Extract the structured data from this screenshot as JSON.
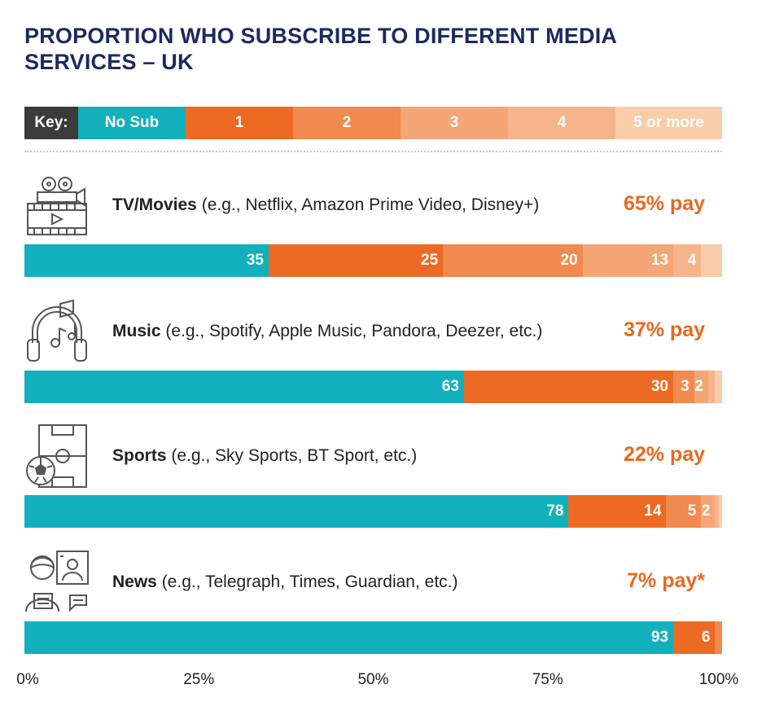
{
  "title": "PROPORTION WHO SUBSCRIBE TO DIFFERENT MEDIA SERVICES – UK",
  "key": {
    "label": "Key:",
    "items": [
      {
        "label": "No Sub",
        "color": "#12b0bd"
      },
      {
        "label": "1",
        "color": "#ec6a23"
      },
      {
        "label": "2",
        "color": "#f08a4e"
      },
      {
        "label": "3",
        "color": "#f4a677"
      },
      {
        "label": "4",
        "color": "#f6b48c"
      },
      {
        "label": "5 or more",
        "color": "#f9cda9"
      }
    ]
  },
  "chart_data": {
    "type": "bar",
    "orientation": "horizontal-stacked",
    "xlim": [
      0,
      100
    ],
    "x_ticks": [
      "0%",
      "25%",
      "50%",
      "75%",
      "100%"
    ],
    "series_names": [
      "No Sub",
      "1",
      "2",
      "3",
      "4",
      "5 or more"
    ],
    "categories": [
      {
        "name": "TV/Movies",
        "desc": " (e.g., Netflix, Amazon Prime Video, Disney+)",
        "pay": "65% pay",
        "icon": "film-camera-icon",
        "values": [
          35,
          25,
          20,
          13,
          4,
          3
        ],
        "labels": [
          "35",
          "25",
          "20",
          "13",
          "4",
          ""
        ]
      },
      {
        "name": "Music",
        "desc": " (e.g., Spotify, Apple Music, Pandora, Deezer, etc.)",
        "pay": "37% pay",
        "icon": "headphones-music-icon",
        "values": [
          63,
          30,
          3,
          2,
          1,
          1
        ],
        "labels": [
          "63",
          "30",
          "3",
          "2",
          "",
          ""
        ]
      },
      {
        "name": "Sports",
        "desc": " (e.g., Sky Sports, BT Sport, etc.)",
        "pay": "22% pay",
        "icon": "football-pitch-icon",
        "values": [
          78,
          14,
          5,
          2,
          0.5,
          0.5
        ],
        "labels": [
          "78",
          "14",
          "5",
          "2",
          "",
          ""
        ]
      },
      {
        "name": "News",
        "desc": " (e.g., Telegraph, Times, Guardian, etc.)",
        "pay": "7% pay*",
        "icon": "newsreader-icon",
        "values": [
          93,
          6,
          1,
          0,
          0,
          0
        ],
        "labels": [
          "93",
          "6",
          "",
          "",
          "",
          ""
        ]
      }
    ]
  }
}
